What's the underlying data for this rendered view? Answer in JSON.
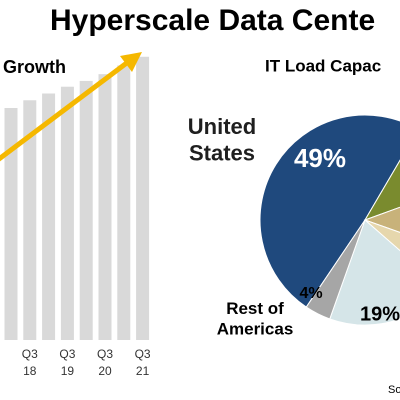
{
  "title": "Hyperscale Data Cente",
  "source": "So",
  "chart_data": [
    {
      "type": "bar",
      "title": "Growth",
      "categories": [
        null,
        "Q3 18",
        null,
        "Q3 19",
        null,
        "Q3 20",
        null,
        "Q3 21"
      ],
      "values": [
        240,
        248,
        255,
        262,
        268,
        275,
        284,
        293
      ],
      "color": "#d9d9d9",
      "ylim": [
        0,
        300
      ]
    },
    {
      "type": "pie",
      "title": "IT Load Capac",
      "categories": [
        "United States",
        null,
        null,
        null,
        null,
        "Rest of Americas"
      ],
      "values": [
        49,
        11,
        11,
        6,
        19,
        4
      ],
      "value_labels": [
        "49%",
        null,
        null,
        null,
        "19%",
        "4%"
      ],
      "colors": [
        "#1f497d",
        "#7a8b2e",
        "#c8b27a",
        "#e6d7ad",
        "#d5e5e8",
        "#a6a6a6"
      ]
    }
  ]
}
